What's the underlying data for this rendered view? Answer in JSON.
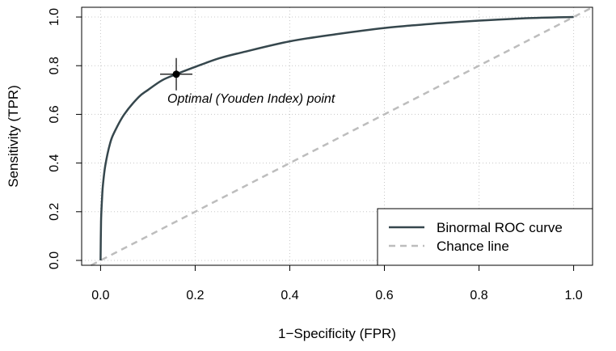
{
  "chart_data": {
    "type": "line",
    "title": "",
    "xlabel": "1−Specificity (FPR)",
    "ylabel": "Sensitivity (TPR)",
    "xlim": [
      -0.04,
      1.04
    ],
    "ylim": [
      -0.02,
      1.04
    ],
    "x_ticks": [
      0.0,
      0.2,
      0.4,
      0.6,
      0.8,
      1.0
    ],
    "x_tick_labels": [
      "0.0",
      "0.2",
      "0.4",
      "0.6",
      "0.8",
      "1.0"
    ],
    "y_ticks": [
      0.0,
      0.2,
      0.4,
      0.6,
      0.8,
      1.0
    ],
    "y_tick_labels": [
      "0.0",
      "0.2",
      "0.4",
      "0.6",
      "0.8",
      "1.0"
    ],
    "grid": true,
    "legend_position": "bottom-right",
    "series": [
      {
        "name": "Binormal ROC curve",
        "style": "solid",
        "color": "#36474d",
        "x": [
          0.0,
          0.001,
          0.003,
          0.005,
          0.01,
          0.02,
          0.03,
          0.05,
          0.08,
          0.1,
          0.13,
          0.16,
          0.2,
          0.25,
          0.3,
          0.4,
          0.5,
          0.6,
          0.7,
          0.8,
          0.9,
          1.0
        ],
        "y": [
          0.0,
          0.16,
          0.25,
          0.31,
          0.39,
          0.48,
          0.53,
          0.6,
          0.67,
          0.7,
          0.74,
          0.765,
          0.795,
          0.83,
          0.855,
          0.9,
          0.93,
          0.955,
          0.972,
          0.985,
          0.995,
          1.0
        ]
      },
      {
        "name": "Chance line",
        "style": "dashed",
        "color": "#bdbdbd",
        "x": [
          -0.04,
          1.04
        ],
        "y": [
          -0.04,
          1.04
        ]
      }
    ],
    "annotations": [
      {
        "text": "Optimal (Youden Index) point",
        "x": 0.16,
        "y": 0.765
      }
    ]
  }
}
